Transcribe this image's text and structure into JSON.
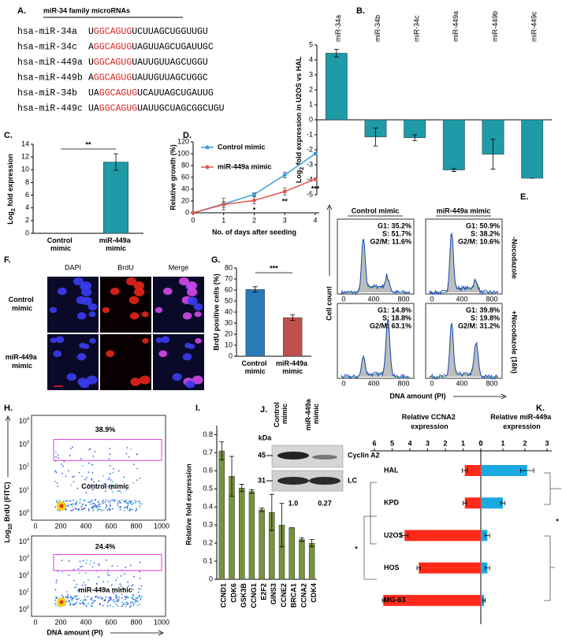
{
  "panel_labels": [
    "A.",
    "B.",
    "C.",
    "D.",
    "E.",
    "F.",
    "G.",
    "H.",
    "I.",
    "J.",
    "K."
  ],
  "sequences": {
    "title": "miR-34 family microRNAs",
    "rows": [
      {
        "name": "hsa-miR-34a",
        "pre": "U",
        "seed": "GGCAGUG",
        "post": "UCUUAGCUGGUUGU"
      },
      {
        "name": "hsa-miR-34c",
        "pre": "A",
        "seed": "GGCAGUG",
        "post": "UAGUUAGCUGAUUGC"
      },
      {
        "name": "hsa-miR-449a",
        "pre": "U",
        "seed": "GGCAGUG",
        "post": "UAUUGUUAGCUGGU"
      },
      {
        "name": "hsa-miR-449b",
        "pre": "A",
        "seed": "GGCAGUG",
        "post": "UAUUGUUAGCUGGC"
      },
      {
        "name": "hsa-miR-34b",
        "pre": "UA",
        "seed": "GGCAGUG",
        "post": "UCAUUAGCUGAUUG"
      },
      {
        "name": "hsa-miR-449c",
        "pre": "UA",
        "seed": "GGCAGUG",
        "post": "UAUUGCUAGCGGCUGU"
      }
    ]
  },
  "chart_data": [
    {
      "type": "bar",
      "categories": [
        "miR-34a",
        "miR-34b",
        "miR-34c",
        "miR-449a",
        "miR-449b",
        "miR-449c"
      ],
      "values": [
        4.45,
        -1.15,
        -1.2,
        -3.35,
        -2.3,
        -3.9
      ],
      "errors": [
        0.25,
        0.6,
        0.2,
        0.1,
        1.0,
        0
      ],
      "color": "#1f9aa8",
      "ylim": [
        -5,
        5
      ],
      "yticks": [
        -5,
        -4,
        -3,
        -2,
        -1,
        0,
        1,
        2,
        3,
        4,
        5
      ],
      "y_label": [
        "Log",
        "2",
        " fold expression in U2OS vs HAL"
      ]
    },
    {
      "type": "bar",
      "categories": [
        "Control mimic",
        "miR-449a mimic"
      ],
      "values": [
        0,
        11.2
      ],
      "errors": [
        0,
        1.3
      ],
      "color": "#1f9aa8",
      "ylim": [
        0,
        14
      ],
      "yticks": [
        0,
        2,
        4,
        6,
        8,
        10,
        12,
        14
      ],
      "y_label": [
        "Log",
        "2",
        " fold expression"
      ],
      "annotation": "**"
    },
    {
      "type": "line",
      "x": [
        0,
        1,
        2,
        3,
        4
      ],
      "xlim": [
        0,
        4
      ],
      "xticks": [
        0,
        1,
        2,
        3,
        4
      ],
      "ylim": [
        0,
        120
      ],
      "yticks": [
        0,
        20,
        40,
        60,
        80,
        100,
        120
      ],
      "x_label": "No. of days after seeding",
      "y_label": "Relative growth (%)",
      "series": [
        {
          "name": "Control mimic",
          "color": "#3a9fd6",
          "values": [
            0,
            15,
            31,
            64,
            100
          ],
          "errors": [
            0,
            10,
            3,
            5,
            1
          ]
        },
        {
          "name": "miR-449a mimic",
          "color": "#e0584f",
          "values": [
            0,
            14,
            21,
            36,
            57
          ],
          "errors": [
            0,
            5,
            6,
            6,
            1
          ]
        }
      ],
      "annotations": [
        {
          "x": 2,
          "text": "*"
        },
        {
          "x": 3,
          "text": "**"
        },
        {
          "x": 4,
          "text": "***"
        }
      ]
    },
    {
      "type": "bar",
      "categories": [
        "Control mimic",
        "miR-449a mimic"
      ],
      "values": [
        60.5,
        35
      ],
      "errors": [
        2.5,
        2.5
      ],
      "colors": [
        "#2a7ab5",
        "#c0504d"
      ],
      "ylim": [
        0,
        80
      ],
      "yticks": [
        0,
        10,
        20,
        30,
        40,
        50,
        60,
        70,
        80
      ],
      "y_label": "BrdU positive cells (%)",
      "annotation": "***"
    },
    {
      "type": "bar",
      "categories": [
        "CCND1",
        "CDK6",
        "GSK3B",
        "CCNG1",
        "E2F2",
        "GINS3",
        "CCNE2",
        "BRCA1",
        "CCNA2",
        "CDK4"
      ],
      "values": [
        0.71,
        0.57,
        0.505,
        0.485,
        0.385,
        0.37,
        0.3,
        0.285,
        0.22,
        0.2
      ],
      "errors": [
        0.05,
        0.11,
        0.02,
        0.01,
        0.01,
        0.1,
        0.12,
        0,
        0.01,
        0.02
      ],
      "color": "#77933c",
      "ylim": [
        0,
        0.85
      ],
      "yticks": [
        0,
        0.1,
        0.2,
        0.3,
        0.4,
        0.5,
        0.6,
        0.7,
        0.8
      ],
      "y_label": "Relative fold expression"
    },
    {
      "type": "butterfly",
      "categories": [
        "HAL",
        "KPD",
        "U2OS",
        "HOS",
        "MG-63"
      ],
      "series": [
        {
          "name": "Relative CCNA2 expression",
          "color": "#ff2a1a",
          "values": [
            0.9,
            0.9,
            4.3,
            3.5,
            5.5
          ],
          "errors": [
            0.15,
            0.1,
            0.2,
            0.1,
            0.05
          ],
          "xlim": [
            0,
            6
          ],
          "xticks": [
            6,
            5,
            4,
            3,
            2,
            1,
            0
          ]
        },
        {
          "name": "Relative miR-449a expression",
          "color": "#1ba9e1",
          "values": [
            2.1,
            1.0,
            0.3,
            0.3,
            0.15
          ],
          "errors": [
            0.3,
            0.1,
            0.1,
            0.1,
            0.05
          ],
          "xlim": [
            0,
            3
          ],
          "xticks": [
            0,
            1,
            2,
            3
          ]
        }
      ],
      "annotations": [
        "*",
        "*"
      ]
    }
  ],
  "cell_cycle": {
    "columns": [
      "Control mimic",
      "miR-449a mimic"
    ],
    "rows": [
      "-Nocodazole",
      "+Nocodazole (16h)"
    ],
    "stats": [
      [
        "G1: 35.2%",
        "S: 51.7%",
        "G2/M: 11.6%"
      ],
      [
        "G1: 50.9%",
        "S: 38.2%",
        "G2/M: 10.6%"
      ],
      [
        "G1: 14.8%",
        "S: 18.8%",
        "G2/M: 63.1%"
      ],
      [
        "G1: 39.8%",
        "S: 19.8%",
        "G2/M: 31.2%"
      ]
    ],
    "x_ticks": [
      "0",
      "400",
      "800"
    ],
    "y_label": "Cell count",
    "x_label": "DNA amount (PI)"
  },
  "microscopy": {
    "columns": [
      "DAPI",
      "BrdU",
      "Merge"
    ],
    "rows": [
      "Control mimic",
      "miR-449a mimic"
    ]
  },
  "flow": {
    "plots": [
      {
        "gate": "38.9%",
        "label": "Control mimic"
      },
      {
        "gate": "24.4%",
        "label": "miR-449a mimic"
      }
    ],
    "x_ticks": [
      "0",
      "200",
      "400",
      "600",
      "800",
      "1000"
    ],
    "y_ticks": [
      {
        "base": "10",
        "exp": "4"
      },
      {
        "base": "10",
        "exp": "3"
      },
      {
        "base": "10",
        "exp": "2"
      },
      {
        "base": "10",
        "exp": "1"
      },
      {
        "base": "10",
        "exp": "0"
      }
    ],
    "y_label": [
      "Log",
      "10",
      " BrdU (FITC)"
    ],
    "x_label": "DNA amount (PI)"
  },
  "western": {
    "unit": "kDa",
    "lanes": [
      "Control mimic",
      "miR-449a mimic"
    ],
    "markers": [
      "45",
      "31"
    ],
    "bands": [
      "Cyclin A2",
      "LC"
    ],
    "quantification": [
      "1.0",
      "0.27"
    ]
  }
}
